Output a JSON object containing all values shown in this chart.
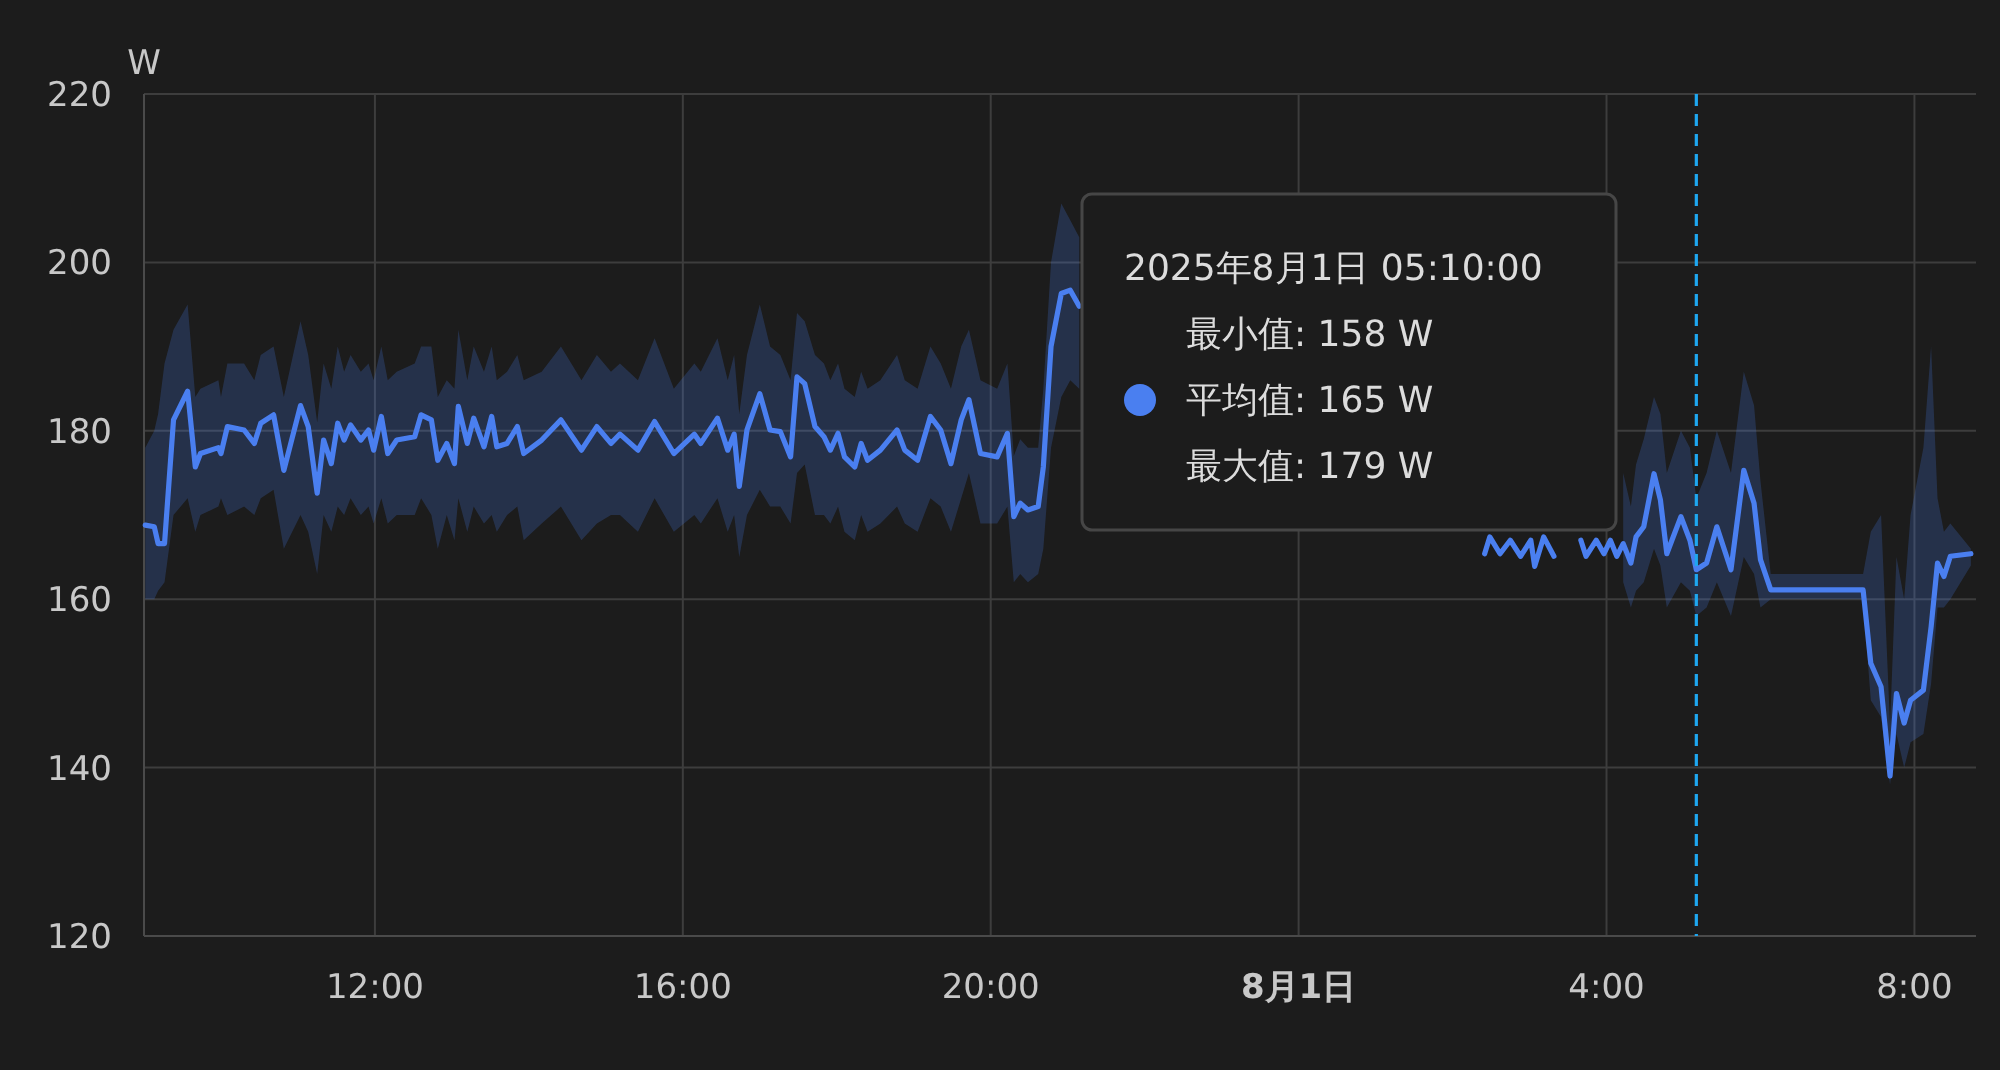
{
  "chart_data": {
    "type": "line",
    "ylabel": "W",
    "xlim": [
      "2025-07-31T09:00",
      "2025-08-01T08:48"
    ],
    "ylim": [
      120,
      220
    ],
    "xticks": [
      {
        "value": "2025-07-31T12:00",
        "label": "12:00"
      },
      {
        "value": "2025-07-31T16:00",
        "label": "16:00"
      },
      {
        "value": "2025-07-31T20:00",
        "label": "20:00"
      },
      {
        "value": "2025-08-01T00:00",
        "label": "8月1日"
      },
      {
        "value": "2025-08-01T04:00",
        "label": "4:00"
      },
      {
        "value": "2025-08-01T08:00",
        "label": "8:00"
      }
    ],
    "yticks": [
      120,
      140,
      160,
      180,
      200,
      220
    ],
    "grid": true,
    "marker": "none",
    "line_style": "solid",
    "ref_lines": [
      {
        "axis": "x",
        "value": "2025-08-01T05:10",
        "color": "#1ea7f0",
        "line_style": "dashed"
      }
    ],
    "annotations": [
      "2025年8月1日 05:10:00",
      "最小值: 158 W",
      "平均值: 165 W",
      "最大值: 179 W"
    ],
    "series": [
      {
        "color": "#4a7ff0",
        "x": [
          "2025-07-31T09:01",
          "2025-07-31T09:08",
          "2025-07-31T09:11",
          "2025-07-31T09:16",
          "2025-07-31T09:23",
          "2025-07-31T09:34",
          "2025-07-31T09:40",
          "2025-07-31T09:44",
          "2025-07-31T09:58",
          "2025-07-31T10:00",
          "2025-07-31T10:05",
          "2025-07-31T10:18",
          "2025-07-31T10:26",
          "2025-07-31T10:31",
          "2025-07-31T10:41",
          "2025-07-31T10:49",
          "2025-07-31T11:02",
          "2025-07-31T11:08",
          "2025-07-31T11:15",
          "2025-07-31T11:20",
          "2025-07-31T11:26",
          "2025-07-31T11:31",
          "2025-07-31T11:36",
          "2025-07-31T11:41",
          "2025-07-31T11:49",
          "2025-07-31T11:55",
          "2025-07-31T11:59",
          "2025-07-31T12:05",
          "2025-07-31T12:10",
          "2025-07-31T12:17",
          "2025-07-31T12:31",
          "2025-07-31T12:36",
          "2025-07-31T12:44",
          "2025-07-31T12:49",
          "2025-07-31T12:56",
          "2025-07-31T13:02",
          "2025-07-31T13:05",
          "2025-07-31T13:12",
          "2025-07-31T13:17",
          "2025-07-31T13:25",
          "2025-07-31T13:31",
          "2025-07-31T13:35",
          "2025-07-31T13:43",
          "2025-07-31T13:51",
          "2025-07-31T13:56",
          "2025-07-31T14:10",
          "2025-07-31T14:25",
          "2025-07-31T14:41",
          "2025-07-31T14:53",
          "2025-07-31T15:04",
          "2025-07-31T15:11",
          "2025-07-31T15:25",
          "2025-07-31T15:38",
          "2025-07-31T15:53",
          "2025-07-31T16:09",
          "2025-07-31T16:14",
          "2025-07-31T16:27",
          "2025-07-31T16:35",
          "2025-07-31T16:40",
          "2025-07-31T16:44",
          "2025-07-31T16:50",
          "2025-07-31T17:00",
          "2025-07-31T17:08",
          "2025-07-31T17:16",
          "2025-07-31T17:24",
          "2025-07-31T17:29",
          "2025-07-31T17:35",
          "2025-07-31T17:43",
          "2025-07-31T17:50",
          "2025-07-31T17:55",
          "2025-07-31T18:01",
          "2025-07-31T18:06",
          "2025-07-31T18:14",
          "2025-07-31T18:19",
          "2025-07-31T18:24",
          "2025-07-31T18:34",
          "2025-07-31T18:47",
          "2025-07-31T18:53",
          "2025-07-31T19:03",
          "2025-07-31T19:13",
          "2025-07-31T19:21",
          "2025-07-31T19:29",
          "2025-07-31T19:37",
          "2025-07-31T19:43",
          "2025-07-31T19:52",
          "2025-07-31T20:05",
          "2025-07-31T20:13",
          "2025-07-31T20:18",
          "2025-07-31T20:23",
          "2025-07-31T20:29",
          "2025-07-31T20:37",
          "2025-07-31T20:41",
          "2025-07-31T20:47",
          "2025-07-31T20:55",
          "2025-07-31T21:02",
          "2025-07-31T21:09",
          "2025-07-31T21:13",
          "2025-07-31T21:30",
          "2025-08-01T02:25",
          "2025-08-01T02:29",
          "2025-08-01T02:37",
          "2025-08-01T02:45",
          "2025-08-01T02:53",
          "2025-08-01T03:01",
          "2025-08-01T03:04",
          "2025-08-01T03:11",
          "2025-08-01T03:19",
          "2025-08-01T03:27",
          "2025-08-01T03:40",
          "2025-08-01T03:44",
          "2025-08-01T03:52",
          "2025-08-01T03:58",
          "2025-08-01T04:03",
          "2025-08-01T04:08",
          "2025-08-01T04:13",
          "2025-08-01T04:19",
          "2025-08-01T04:23",
          "2025-08-01T04:29",
          "2025-08-01T04:37",
          "2025-08-01T04:42",
          "2025-08-01T04:47",
          "2025-08-01T04:58",
          "2025-08-01T05:05",
          "2025-08-01T05:10",
          "2025-08-01T05:18",
          "2025-08-01T05:26",
          "2025-08-01T05:37",
          "2025-08-01T05:47",
          "2025-08-01T05:55",
          "2025-08-01T06:00",
          "2025-08-01T06:08",
          "2025-08-01T07:20",
          "2025-08-01T07:26",
          "2025-08-01T07:34",
          "2025-08-01T07:41",
          "2025-08-01T07:46",
          "2025-08-01T07:52",
          "2025-08-01T07:57",
          "2025-08-01T08:07",
          "2025-08-01T08:13",
          "2025-08-01T08:18",
          "2025-08-01T08:23",
          "2025-08-01T08:28",
          "2025-08-01T08:44"
        ],
        "values": [
          168.8,
          168.6,
          166.6,
          166.6,
          181.3,
          184.7,
          175.7,
          177.3,
          178,
          177.3,
          180.5,
          180.1,
          178.5,
          180.9,
          181.9,
          175.3,
          183,
          180.5,
          172.6,
          178.9,
          176.1,
          180.9,
          178.9,
          180.7,
          178.9,
          180.1,
          177.7,
          181.7,
          177.3,
          178.9,
          179.3,
          181.9,
          181.3,
          176.5,
          178.5,
          176.1,
          182.9,
          178.5,
          181.5,
          178.1,
          181.7,
          178.1,
          178.5,
          180.5,
          177.3,
          178.9,
          181.3,
          177.7,
          180.5,
          178.5,
          179.6,
          177.7,
          181.1,
          177.3,
          179.6,
          178.5,
          181.5,
          177.7,
          179.6,
          173.4,
          180.1,
          184.4,
          180.1,
          179.9,
          176.9,
          186.4,
          185.6,
          180.5,
          179.3,
          177.7,
          179.7,
          176.9,
          175.7,
          178.5,
          176.5,
          177.7,
          180.1,
          177.7,
          176.5,
          181.7,
          180.1,
          176.1,
          181.3,
          183.7,
          177.3,
          176.9,
          179.7,
          169.8,
          171.4,
          170.6,
          171,
          175.7,
          190,
          196.3,
          196.7,
          194.8,
          null,
          null,
          165.4,
          167.4,
          165.4,
          167,
          165.1,
          167,
          163.9,
          167.4,
          165.1,
          null,
          167,
          165.1,
          167,
          165.4,
          167,
          165.1,
          166.6,
          164.3,
          167.4,
          168.6,
          174.9,
          171.8,
          165.4,
          169.8,
          167,
          163.5,
          164.3,
          168.6,
          163.5,
          175.3,
          171.4,
          164.7,
          161.1,
          161.1,
          152.4,
          149.6,
          139,
          148.8,
          145.3,
          148,
          149.2,
          156.7,
          164.3,
          162.7,
          165.1,
          165.4
        ],
        "lower": [
          160,
          160,
          161,
          162,
          170,
          172,
          168,
          170,
          171,
          172,
          170,
          171,
          170,
          172,
          173,
          166,
          170,
          168,
          163,
          170,
          168,
          171,
          170,
          172,
          170,
          171,
          169,
          172,
          169,
          170,
          170,
          172,
          170,
          166,
          170,
          167,
          172,
          168,
          171,
          169,
          170,
          168,
          170,
          171,
          167,
          169,
          171,
          167,
          169,
          170,
          170,
          168,
          172,
          168,
          170,
          169,
          172,
          168,
          170,
          165,
          170,
          173,
          171,
          171,
          169,
          175,
          176,
          170,
          170,
          169,
          171,
          168,
          167,
          170,
          168,
          169,
          171,
          169,
          168,
          172,
          171,
          168,
          172,
          175,
          169,
          169,
          171,
          162,
          163,
          162,
          163,
          166,
          178,
          184,
          186,
          185,
          null,
          null,
          null,
          null,
          null,
          null,
          null,
          null,
          null,
          null,
          null,
          null,
          null,
          null,
          null,
          null,
          null,
          null,
          162,
          159,
          161,
          162,
          166,
          164,
          159,
          162,
          161,
          158,
          159,
          162,
          158,
          165,
          163,
          159,
          160,
          160,
          148,
          146,
          138,
          144,
          140,
          143,
          144,
          150,
          159,
          159,
          160,
          164
        ],
        "upper": [
          178,
          180,
          182,
          188,
          192,
          195,
          184,
          185,
          186,
          184,
          188,
          188,
          186,
          189,
          190,
          184,
          193,
          189,
          181,
          188,
          185,
          190,
          187,
          189,
          187,
          188,
          186,
          190,
          186,
          187,
          188,
          190,
          190,
          184,
          186,
          185,
          192,
          186,
          190,
          187,
          190,
          186,
          187,
          189,
          186,
          187,
          190,
          186,
          189,
          187,
          188,
          186,
          191,
          185,
          188,
          187,
          191,
          186,
          189,
          182,
          189,
          195,
          190,
          189,
          186,
          194,
          193,
          189,
          188,
          186,
          188,
          185,
          184,
          187,
          185,
          186,
          189,
          186,
          185,
          190,
          188,
          185,
          190,
          192,
          186,
          185,
          188,
          177,
          179,
          178,
          178,
          185,
          200,
          207,
          205,
          203,
          null,
          null,
          null,
          null,
          null,
          null,
          null,
          null,
          null,
          null,
          null,
          null,
          null,
          null,
          null,
          null,
          null,
          null,
          175,
          171,
          176,
          179,
          184,
          182,
          175,
          180,
          178,
          172,
          175,
          180,
          175,
          187,
          183,
          174,
          163,
          163,
          168,
          170,
          145,
          165,
          160,
          170,
          178,
          190,
          172,
          168,
          169,
          166
        ]
      }
    ]
  }
}
